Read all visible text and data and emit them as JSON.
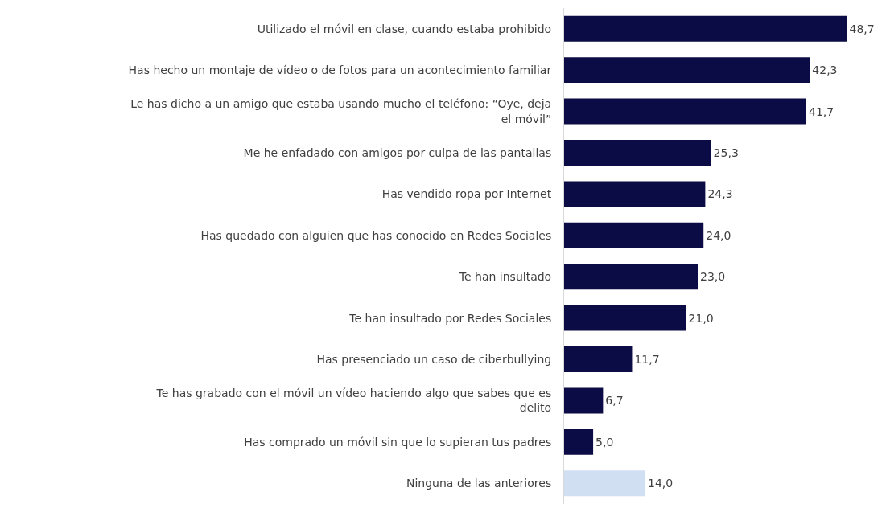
{
  "chart_data": {
    "type": "bar",
    "orientation": "horizontal",
    "categories": [
      "Utilizado el móvil en clase, cuando estaba prohibido",
      "Has hecho un montaje de vídeo o de fotos para un acontecimiento familiar",
      "Le has dicho a un amigo que estaba usando mucho el teléfono: “Oye, deja el móvil”",
      "Me he enfadado con amigos por culpa de las pantallas",
      "Has vendido ropa por Internet",
      "Has quedado con alguien que has conocido en Redes Sociales",
      "Te han insultado",
      "Te han insultado por Redes Sociales",
      "Has presenciado un caso de ciberbullying",
      "Te has grabado con el móvil un vídeo haciendo algo que sabes que es delito",
      "Has comprado un móvil sin que lo supieran tus padres",
      "Ninguna de las anteriores"
    ],
    "values": [
      48.7,
      42.3,
      41.7,
      25.3,
      24.3,
      24.0,
      23.0,
      21.0,
      11.7,
      6.7,
      5.0,
      14.0
    ],
    "value_labels": [
      "48,7",
      "42,3",
      "41,7",
      "25,3",
      "24,3",
      "24,0",
      "23,0",
      "21,0",
      "11,7",
      "6,7",
      "5,0",
      "14,0"
    ],
    "colors": [
      "#0b0b45",
      "#0b0b45",
      "#0b0b45",
      "#0b0b45",
      "#0b0b45",
      "#0b0b45",
      "#0b0b45",
      "#0b0b45",
      "#0b0b45",
      "#0b0b45",
      "#0b0b45",
      "#d0dff2"
    ]
  }
}
